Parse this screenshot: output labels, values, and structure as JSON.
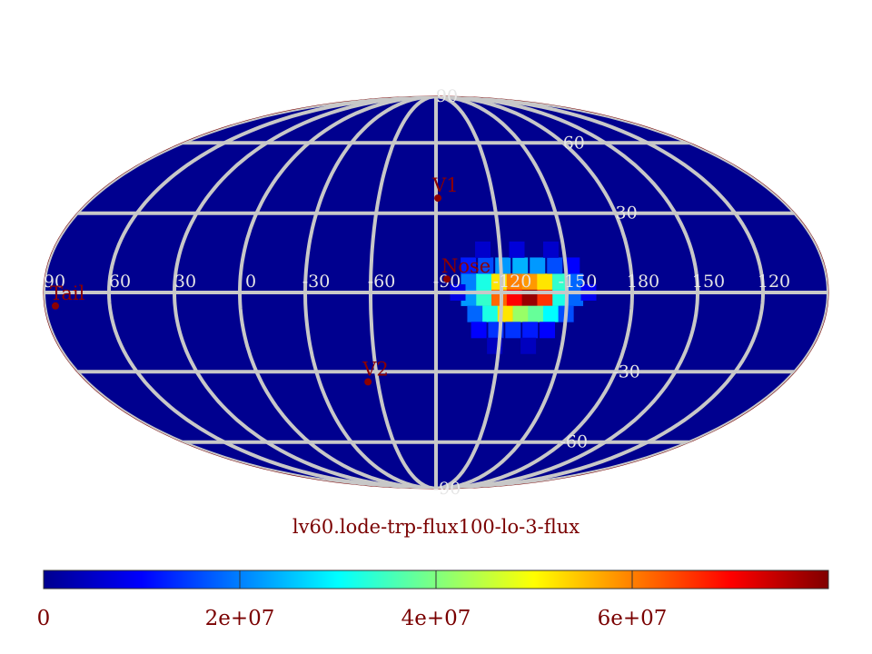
{
  "chart_data": {
    "type": "heatmap",
    "projection": "mollweide",
    "title": "lv60.lode-trp-flux100-lo-3-flux",
    "background_color": "#00008f",
    "lon_labels": [
      "60",
      "30",
      "0",
      "-30",
      "-60",
      "-90",
      "-120",
      "-150",
      "180",
      "150",
      "120",
      "90"
    ],
    "lon_values": [
      60,
      30,
      0,
      -30,
      -60,
      -90,
      -120,
      -150,
      180,
      150,
      120,
      90
    ],
    "lat_labels": [
      "90",
      "60",
      "30",
      "-30",
      "-60",
      "-90"
    ],
    "lat_values": [
      90,
      60,
      30,
      -30,
      -60,
      -90
    ],
    "markers": [
      {
        "label": "V1",
        "lon": -91,
        "lat": 36
      },
      {
        "label": "Nose",
        "lon": -95,
        "lat": 5
      },
      {
        "label": "V2",
        "lon": -55,
        "lat": -34
      },
      {
        "label": "Tail",
        "lon": 85,
        "lat": -5
      }
    ],
    "hotspot": {
      "center_lon": -130,
      "center_lat": 0,
      "peak_value": 78000000,
      "cells": [
        {
          "lon": -105,
          "lat": 4,
          "value": 20000000
        },
        {
          "lon": -112,
          "lat": 4,
          "value": 32000000
        },
        {
          "lon": -119,
          "lat": 4,
          "value": 52000000
        },
        {
          "lon": -126,
          "lat": 4,
          "value": 60000000
        },
        {
          "lon": -133,
          "lat": 4,
          "value": 58000000
        },
        {
          "lon": -140,
          "lat": 4,
          "value": 52000000
        },
        {
          "lon": -147,
          "lat": 4,
          "value": 34000000
        },
        {
          "lon": -154,
          "lat": 4,
          "value": 18000000
        },
        {
          "lon": -105,
          "lat": -2,
          "value": 22000000
        },
        {
          "lon": -112,
          "lat": -2,
          "value": 34000000
        },
        {
          "lon": -119,
          "lat": -2,
          "value": 62000000
        },
        {
          "lon": -126,
          "lat": -2,
          "value": 70000000
        },
        {
          "lon": -133,
          "lat": -2,
          "value": 78000000
        },
        {
          "lon": -140,
          "lat": -2,
          "value": 66000000
        },
        {
          "lon": -147,
          "lat": -2,
          "value": 32000000
        },
        {
          "lon": -154,
          "lat": -2,
          "value": 18000000
        },
        {
          "lon": -108,
          "lat": -8,
          "value": 18000000
        },
        {
          "lon": -115,
          "lat": -8,
          "value": 32000000
        },
        {
          "lon": -122,
          "lat": -8,
          "value": 52000000
        },
        {
          "lon": -129,
          "lat": -8,
          "value": 42000000
        },
        {
          "lon": -136,
          "lat": -8,
          "value": 38000000
        },
        {
          "lon": -143,
          "lat": -8,
          "value": 30000000
        },
        {
          "lon": -150,
          "lat": -8,
          "value": 16000000
        },
        {
          "lon": -105,
          "lat": 10,
          "value": 12000000
        },
        {
          "lon": -113,
          "lat": 10,
          "value": 16000000
        },
        {
          "lon": -121,
          "lat": 10,
          "value": 22000000
        },
        {
          "lon": -129,
          "lat": 10,
          "value": 24000000
        },
        {
          "lon": -137,
          "lat": 10,
          "value": 22000000
        },
        {
          "lon": -145,
          "lat": 10,
          "value": 16000000
        },
        {
          "lon": -153,
          "lat": 10,
          "value": 10000000
        },
        {
          "lon": -110,
          "lat": -14,
          "value": 10000000
        },
        {
          "lon": -118,
          "lat": -14,
          "value": 14000000
        },
        {
          "lon": -126,
          "lat": -14,
          "value": 14000000
        },
        {
          "lon": -134,
          "lat": -14,
          "value": 12000000
        },
        {
          "lon": -142,
          "lat": -14,
          "value": 10000000
        },
        {
          "lon": -100,
          "lat": 0,
          "value": 8000000
        },
        {
          "lon": -160,
          "lat": 0,
          "value": 9000000
        },
        {
          "lon": -112,
          "lat": 16,
          "value": 6000000
        },
        {
          "lon": -128,
          "lat": 16,
          "value": 7000000
        },
        {
          "lon": -144,
          "lat": 16,
          "value": 6000000
        },
        {
          "lon": -118,
          "lat": -20,
          "value": 5000000
        },
        {
          "lon": -134,
          "lat": -20,
          "value": 5000000
        }
      ]
    },
    "colorbar": {
      "min": 0,
      "max": 80000000,
      "tick_values": [
        0,
        20000000,
        40000000,
        60000000
      ],
      "tick_labels": [
        "0",
        "2e+07",
        "4e+07",
        "6e+07"
      ],
      "colormap": "jet"
    }
  }
}
